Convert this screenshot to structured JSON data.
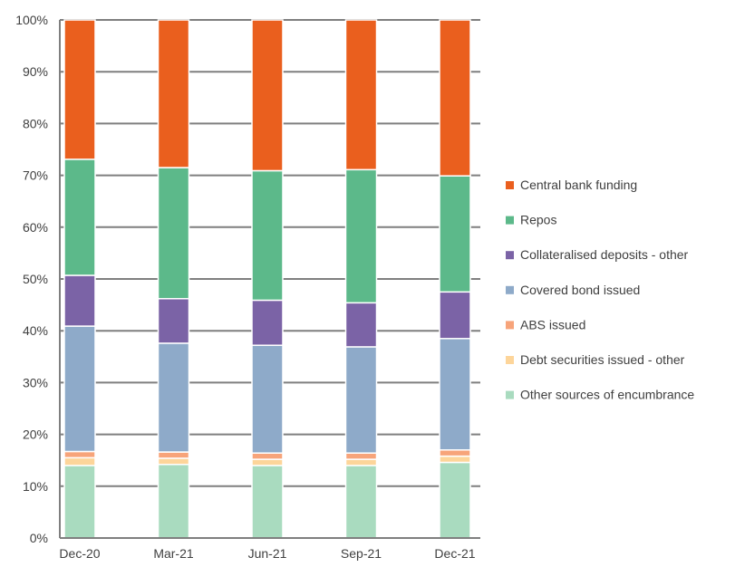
{
  "chart_data": {
    "type": "bar",
    "stacked": true,
    "categories": [
      "Dec-20",
      "Mar-21",
      "Jun-21",
      "Sep-21",
      "Dec-21"
    ],
    "ylim": [
      0,
      100
    ],
    "yticks": [
      0,
      10,
      20,
      30,
      40,
      50,
      60,
      70,
      80,
      90,
      100
    ],
    "ytick_labels": [
      "0%",
      "10%",
      "20%",
      "30%",
      "40%",
      "50%",
      "60%",
      "70%",
      "80%",
      "90%",
      "100%"
    ],
    "grid": "horizontal",
    "legend_position": "right",
    "series": [
      {
        "name": "Other sources of encumbrance",
        "color": "#a9dbbf",
        "values": [
          14.0,
          14.2,
          14.0,
          14.0,
          14.6
        ]
      },
      {
        "name": "Debt securities issued - other",
        "color": "#fdd59a",
        "values": [
          1.5,
          1.2,
          1.2,
          1.2,
          1.2
        ]
      },
      {
        "name": "ABS issued",
        "color": "#f7a47a",
        "values": [
          1.2,
          1.2,
          1.2,
          1.2,
          1.2
        ]
      },
      {
        "name": "Covered bond issued",
        "color": "#8eaac9",
        "values": [
          24.2,
          21.0,
          20.8,
          20.5,
          21.5
        ]
      },
      {
        "name": "Collateralised deposits - other",
        "color": "#7b63a6",
        "values": [
          9.8,
          8.6,
          8.7,
          8.5,
          9.0
        ]
      },
      {
        "name": "Repos",
        "color": "#5cb98a",
        "values": [
          22.4,
          25.3,
          25.0,
          25.7,
          22.4
        ]
      },
      {
        "name": "Central bank funding",
        "color": "#ea5f1e",
        "values": [
          26.9,
          28.5,
          29.1,
          28.9,
          30.1
        ]
      }
    ],
    "legend_order": [
      "Central bank funding",
      "Repos",
      "Collateralised deposits - other",
      "Covered bond issued",
      "ABS issued",
      "Debt securities issued - other",
      "Other sources of encumbrance"
    ]
  }
}
